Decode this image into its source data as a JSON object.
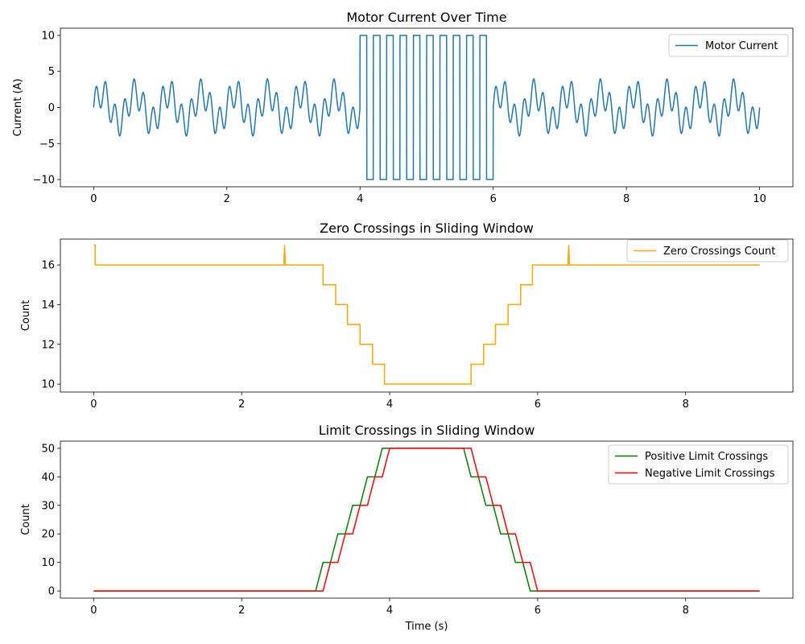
{
  "chart_data": [
    {
      "type": "line",
      "title": "Motor Current Over Time",
      "xlabel": "",
      "ylabel": "Current (A)",
      "xlim": [
        -0.5,
        10.5
      ],
      "ylim": [
        -11,
        11
      ],
      "xticks": [
        0,
        2,
        4,
        6,
        8,
        10
      ],
      "xtick_labels": [
        "0",
        "2",
        "4",
        "6",
        "8",
        "10"
      ],
      "yticks": [
        -10,
        -5,
        0,
        5,
        10
      ],
      "ytick_labels": [
        "−10",
        "−5",
        "0",
        "5",
        "10"
      ],
      "legend": "top-right",
      "grid": false,
      "series": [
        {
          "name": "Motor Current",
          "color": "#1f77b4",
          "description": "sum of sinusoids (amplitude ~3.8) from 0–4 s and 6–10 s; square wave ±10 at ~5 Hz from 4–6 s"
        }
      ]
    },
    {
      "type": "line",
      "title": "Zero Crossings in Sliding Window",
      "xlabel": "",
      "ylabel": "Count",
      "xlim": [
        -0.45,
        9.45
      ],
      "ylim": [
        9.6,
        17.3
      ],
      "xticks": [
        0,
        2,
        4,
        6,
        8
      ],
      "xtick_labels": [
        "0",
        "2",
        "4",
        "6",
        "8"
      ],
      "yticks": [
        10,
        12,
        14,
        16
      ],
      "ytick_labels": [
        "10",
        "12",
        "14",
        "16"
      ],
      "legend": "top-right",
      "grid": false,
      "series": [
        {
          "name": "Zero Crossings Count",
          "color": "#ffa500",
          "x": [
            0,
            0.02,
            0.02,
            2.57,
            2.58,
            2.59,
            3.1,
            3.1,
            3.27,
            3.27,
            3.43,
            3.43,
            3.6,
            3.6,
            3.77,
            3.77,
            3.93,
            3.93,
            5.1,
            5.1,
            5.27,
            5.27,
            5.43,
            5.43,
            5.6,
            5.6,
            5.77,
            5.77,
            5.93,
            5.93,
            6.41,
            6.42,
            6.43,
            9.0
          ],
          "values": [
            17,
            17,
            16,
            16,
            17,
            16,
            16,
            15,
            15,
            14,
            14,
            13,
            13,
            12,
            12,
            11,
            11,
            10,
            10,
            11,
            11,
            12,
            12,
            13,
            13,
            14,
            14,
            15,
            15,
            16,
            16,
            17,
            16,
            16
          ]
        }
      ]
    },
    {
      "type": "line",
      "title": "Limit Crossings in Sliding Window",
      "xlabel": "Time (s)",
      "ylabel": "Count",
      "xlim": [
        -0.45,
        9.45
      ],
      "ylim": [
        -2.5,
        52.5
      ],
      "xticks": [
        0,
        2,
        4,
        6,
        8
      ],
      "xtick_labels": [
        "0",
        "2",
        "4",
        "6",
        "8"
      ],
      "yticks": [
        0,
        10,
        20,
        30,
        40,
        50
      ],
      "ytick_labels": [
        "0",
        "10",
        "20",
        "30",
        "40",
        "50"
      ],
      "legend": "top-right",
      "grid": false,
      "series": [
        {
          "name": "Positive Limit Crossings",
          "color": "#008000",
          "x": [
            0,
            3.0,
            3.1,
            3.2,
            3.3,
            3.4,
            3.5,
            3.6,
            3.7,
            3.8,
            3.9,
            5.0,
            5.1,
            5.2,
            5.3,
            5.4,
            5.5,
            5.6,
            5.7,
            5.8,
            5.9,
            9.0
          ],
          "values": [
            0,
            0,
            10,
            10,
            20,
            20,
            30,
            30,
            40,
            40,
            50,
            50,
            40,
            40,
            30,
            30,
            20,
            20,
            10,
            10,
            0,
            0
          ]
        },
        {
          "name": "Negative Limit Crossings",
          "color": "#ff0000",
          "x": [
            0,
            3.1,
            3.2,
            3.3,
            3.4,
            3.5,
            3.6,
            3.7,
            3.8,
            3.9,
            4.0,
            5.1,
            5.2,
            5.3,
            5.4,
            5.5,
            5.6,
            5.7,
            5.8,
            5.9,
            6.0,
            9.0
          ],
          "values": [
            0,
            0,
            10,
            10,
            20,
            20,
            30,
            30,
            40,
            40,
            50,
            50,
            40,
            40,
            30,
            30,
            20,
            20,
            10,
            10,
            0,
            0
          ]
        }
      ]
    }
  ]
}
